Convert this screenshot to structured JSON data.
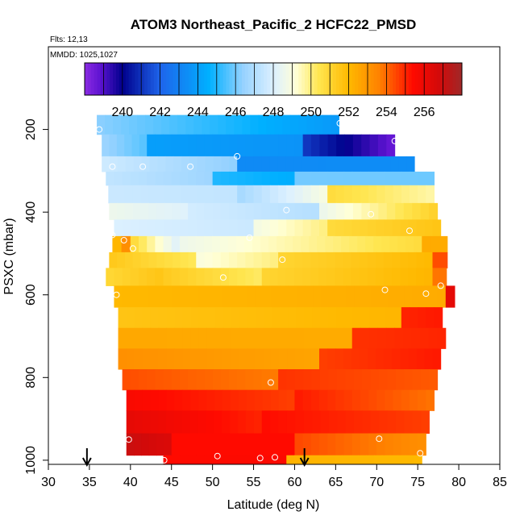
{
  "chart_data": {
    "type": "heatmap",
    "title": "ATOM3 Northeast_Pacific_2 HCFC22_PMSD",
    "annotations": {
      "flights": "Flts: 12,13",
      "dates": "MMDD: 1025,1027"
    },
    "xlabel": "Latitude (deg N)",
    "ylabel": "PSXC (mbar)",
    "xlim": [
      30,
      85
    ],
    "ylim": [
      1010,
      0
    ],
    "x_ticks": [
      30,
      35,
      40,
      45,
      50,
      55,
      60,
      65,
      70,
      75,
      80,
      85
    ],
    "y_ticks": [
      200,
      400,
      600,
      800,
      1000
    ],
    "colorbar": {
      "range": [
        238,
        258
      ],
      "ticks": [
        240,
        242,
        244,
        246,
        248,
        250,
        252,
        254,
        256
      ]
    },
    "arrows_at_latitude": [
      34.7,
      61.2
    ],
    "rows": [
      {
        "p": [
          165,
          212
        ],
        "segs": [
          [
            35.9,
            65.4,
            246.3,
            243.8
          ]
        ]
      },
      {
        "p": [
          212,
          265
        ],
        "segs": [
          [
            36.5,
            42.0,
            246.6,
            245.6
          ],
          [
            42.0,
            61.0,
            244.0,
            243.6
          ],
          [
            61.0,
            72.2,
            241.2,
            238.6
          ]
        ]
      },
      {
        "p": [
          265,
          302
        ],
        "segs": [
          [
            36.5,
            53.0,
            247.7,
            246.3
          ],
          [
            53.0,
            74.6,
            243.3,
            243.4
          ]
        ]
      },
      {
        "p": [
          302,
          335
        ],
        "segs": [
          [
            37.0,
            50.0,
            247.4,
            246.6
          ],
          [
            50.0,
            60.0,
            245.0,
            244.5
          ],
          [
            60.0,
            77.0,
            246.0,
            245.9
          ]
        ]
      },
      {
        "p": [
          335,
          378
        ],
        "segs": [
          [
            37.3,
            53.0,
            247.6,
            247.4
          ],
          [
            53.0,
            64.0,
            246.7,
            249.0
          ],
          [
            64.0,
            77.0,
            250.8,
            249.6
          ]
        ]
      },
      {
        "p": [
          378,
          418
        ],
        "segs": [
          [
            37.4,
            47.0,
            248.6,
            248.1
          ],
          [
            47.0,
            63.0,
            247.8,
            247.1
          ],
          [
            63.0,
            77.4,
            248.5,
            251.2
          ]
        ]
      },
      {
        "p": [
          418,
          458
        ],
        "segs": [
          [
            38.0,
            55.0,
            248.0,
            247.6
          ],
          [
            55.0,
            64.0,
            248.8,
            250.0
          ],
          [
            64.0,
            77.8,
            250.8,
            251.6
          ]
        ]
      },
      {
        "p": [
          458,
          497
        ],
        "segs": [
          [
            37.8,
            40.0,
            251.5,
            253.8
          ],
          [
            40.0,
            46.0,
            251.0,
            248.0
          ],
          [
            46.0,
            75.5,
            248.6,
            250.8
          ],
          [
            75.5,
            78.6,
            252.4,
            252.4
          ]
        ]
      },
      {
        "p": [
          497,
          535
        ],
        "segs": [
          [
            37.4,
            48.0,
            251.5,
            250.3
          ],
          [
            48.0,
            58.0,
            249.0,
            250.0
          ],
          [
            58.0,
            76.8,
            251.0,
            252.0
          ],
          [
            76.8,
            78.6,
            254.4,
            254.4
          ]
        ]
      },
      {
        "p": [
          535,
          578
        ],
        "segs": [
          [
            37.0,
            44.0,
            250.9,
            251.6
          ],
          [
            44.0,
            56.0,
            251.4,
            250.2
          ],
          [
            56.0,
            76.8,
            251.0,
            252.1
          ],
          [
            76.8,
            78.5,
            253.8,
            253.8
          ]
        ]
      },
      {
        "p": [
          578,
          630
        ],
        "segs": [
          [
            38.0,
            78.4,
            252.0,
            252.4
          ],
          [
            78.4,
            79.5,
            256.2,
            256.2
          ]
        ]
      },
      {
        "p": [
          630,
          680
        ],
        "segs": [
          [
            38.5,
            73.0,
            251.6,
            252.1
          ],
          [
            73.0,
            78.0,
            255.0,
            255.2
          ]
        ]
      },
      {
        "p": [
          680,
          730
        ],
        "segs": [
          [
            38.5,
            67.0,
            252.5,
            252.4
          ],
          [
            67.0,
            78.4,
            254.8,
            255.0
          ]
        ]
      },
      {
        "p": [
          730,
          780
        ],
        "segs": [
          [
            38.5,
            63.0,
            253.2,
            252.6
          ],
          [
            63.0,
            77.8,
            254.6,
            255.2
          ]
        ]
      },
      {
        "p": [
          780,
          830
        ],
        "segs": [
          [
            39.0,
            58.0,
            254.4,
            253.7
          ],
          [
            58.0,
            77.4,
            254.8,
            254.2
          ]
        ]
      },
      {
        "p": [
          830,
          880
        ],
        "segs": [
          [
            39.5,
            60.0,
            255.6,
            254.6
          ],
          [
            60.0,
            77.0,
            255.2,
            253.8
          ]
        ]
      },
      {
        "p": [
          880,
          935
        ],
        "segs": [
          [
            39.5,
            56.0,
            256.2,
            255.0
          ],
          [
            56.0,
            76.4,
            255.4,
            254.6
          ]
        ]
      },
      {
        "p": [
          935,
          988
        ],
        "segs": [
          [
            39.5,
            45.0,
            257.0,
            256.5
          ],
          [
            45.0,
            60.0,
            255.4,
            255.4
          ],
          [
            60.0,
            76.0,
            254.5,
            253.2
          ]
        ]
      },
      {
        "p": [
          988,
          1010
        ],
        "segs": [
          [
            44.0,
            59.0,
            255.4,
            255.5
          ],
          [
            59.0,
            75.5,
            252.2,
            252.0
          ]
        ]
      }
    ],
    "points": [
      [
        36.2,
        200
      ],
      [
        65.5,
        185
      ],
      [
        72.2,
        228
      ],
      [
        37.8,
        290
      ],
      [
        41.5,
        290
      ],
      [
        47.3,
        290
      ],
      [
        53.0,
        265
      ],
      [
        77.6,
        350
      ],
      [
        59.0,
        395
      ],
      [
        69.3,
        405
      ],
      [
        74.0,
        445
      ],
      [
        37.8,
        455
      ],
      [
        39.2,
        468
      ],
      [
        40.3,
        488
      ],
      [
        54.5,
        462
      ],
      [
        58.5,
        515
      ],
      [
        51.3,
        558
      ],
      [
        38.3,
        600
      ],
      [
        71.0,
        588
      ],
      [
        76.0,
        597
      ],
      [
        77.8,
        578
      ],
      [
        57.1,
        812
      ],
      [
        39.8,
        950
      ],
      [
        70.3,
        948
      ],
      [
        75.3,
        983
      ],
      [
        44.1,
        1000
      ],
      [
        50.6,
        990
      ],
      [
        55.8,
        995
      ],
      [
        57.6,
        993
      ]
    ]
  }
}
